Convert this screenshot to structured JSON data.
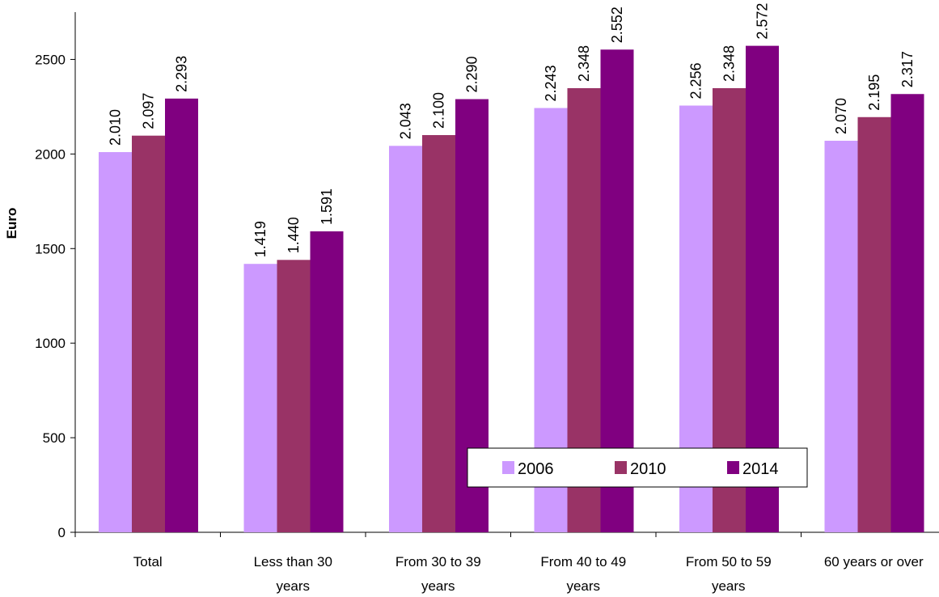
{
  "chart_data": {
    "type": "bar",
    "title": "",
    "xlabel": "",
    "ylabel": "Euro",
    "ylim": [
      0,
      2750
    ],
    "yticks": [
      0,
      500,
      1000,
      1500,
      2000,
      2500
    ],
    "grid": false,
    "legend_position": "bottom-right",
    "categories": [
      [
        "Total"
      ],
      [
        "Less than 30",
        "years"
      ],
      [
        "From 30 to 39",
        "years"
      ],
      [
        "From 40 to 49",
        "years"
      ],
      [
        "From 50 to 59",
        "years"
      ],
      [
        "60 years or over"
      ]
    ],
    "series": [
      {
        "name": "2006",
        "color": "#cc99ff",
        "values": [
          2010,
          1419,
          2043,
          2243,
          2256,
          2070
        ],
        "labels": [
          "2.010",
          "1.419",
          "2.043",
          "2.243",
          "2.256",
          "2.070"
        ]
      },
      {
        "name": "2010",
        "color": "#993366",
        "values": [
          2097,
          1440,
          2100,
          2348,
          2348,
          2195
        ],
        "labels": [
          "2.097",
          "1.440",
          "2.100",
          "2.348",
          "2.348",
          "2.195"
        ]
      },
      {
        "name": "2014",
        "color": "#800080",
        "values": [
          2293,
          1591,
          2290,
          2552,
          2572,
          2317
        ],
        "labels": [
          "2.293",
          "1.591",
          "2.290",
          "2.552",
          "2.572",
          "2.317"
        ]
      }
    ]
  }
}
